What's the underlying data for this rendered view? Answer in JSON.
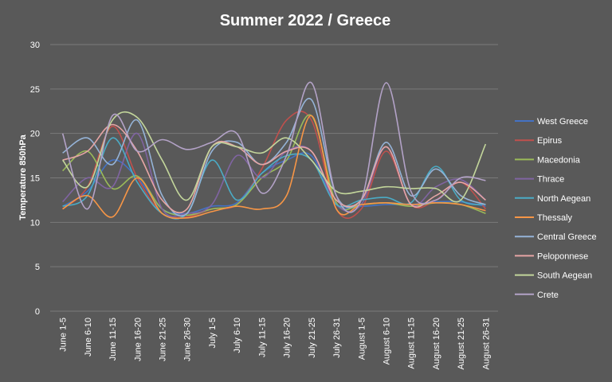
{
  "chart_data": {
    "type": "line",
    "title": "Summer 2022 / Greece",
    "xlabel": "",
    "ylabel": "Temperature 850hPa",
    "ylim": [
      0,
      30
    ],
    "yticks": [
      0,
      5,
      10,
      15,
      20,
      25,
      30
    ],
    "grid": true,
    "legend_position": "right",
    "smooth": true,
    "categories": [
      "June 1-5",
      "June 6-10",
      "June 11-15",
      "June 16-20",
      "June 21-25",
      "June 26-30",
      "July 1-5",
      "July 6-10",
      "July 11-15",
      "July 16-20",
      "July 21-25",
      "July 26-31",
      "August 1-5",
      "August 6-10",
      "August 11-15",
      "August 16-20",
      "August 21-25",
      "August 26-31"
    ],
    "series": [
      {
        "name": "West Greece",
        "color": "#4472c4",
        "values": [
          11.8,
          13.5,
          17.0,
          15.0,
          11.5,
          11.0,
          11.8,
          12.2,
          15.5,
          17.0,
          17.5,
          12.0,
          11.8,
          12.0,
          12.0,
          12.3,
          12.3,
          11.8
        ]
      },
      {
        "name": "Epirus",
        "color": "#c0504d",
        "values": [
          11.5,
          14.0,
          20.8,
          15.0,
          11.0,
          10.6,
          11.5,
          12.0,
          16.0,
          21.5,
          21.5,
          11.5,
          11.5,
          18.0,
          12.0,
          12.5,
          14.5,
          11.5
        ]
      },
      {
        "name": "Macedonia",
        "color": "#9bbb59",
        "values": [
          15.8,
          18.0,
          13.8,
          15.2,
          11.5,
          10.8,
          11.5,
          12.0,
          15.0,
          17.0,
          22.0,
          12.2,
          12.0,
          12.2,
          11.8,
          12.2,
          12.0,
          11.0
        ]
      },
      {
        "name": "Thrace",
        "color": "#8064a2",
        "values": [
          12.3,
          15.0,
          14.0,
          20.0,
          11.5,
          11.0,
          12.0,
          17.5,
          15.0,
          18.0,
          18.0,
          12.0,
          12.0,
          18.5,
          12.0,
          14.0,
          14.8,
          12.5
        ]
      },
      {
        "name": "North Aegean",
        "color": "#4bacc6",
        "values": [
          11.8,
          13.0,
          19.5,
          14.5,
          11.0,
          11.0,
          17.0,
          12.5,
          15.5,
          17.5,
          17.0,
          12.0,
          12.5,
          12.8,
          12.2,
          16.3,
          12.5,
          12.0
        ]
      },
      {
        "name": "Thessaly",
        "color": "#f79646",
        "values": [
          11.5,
          13.0,
          10.6,
          15.0,
          11.0,
          10.5,
          11.2,
          11.8,
          11.5,
          13.0,
          22.0,
          11.5,
          12.0,
          12.2,
          12.0,
          12.2,
          12.0,
          11.3
        ]
      },
      {
        "name": "Central Greece",
        "color": "#95b3d7",
        "values": [
          17.8,
          19.5,
          16.5,
          21.5,
          13.0,
          11.0,
          18.0,
          19.0,
          16.5,
          19.0,
          23.8,
          13.0,
          12.5,
          19.0,
          13.0,
          16.0,
          13.0,
          12.0
        ]
      },
      {
        "name": "Peloponnese",
        "color": "#e6a5a5",
        "values": [
          17.0,
          18.0,
          21.0,
          18.0,
          12.5,
          11.5,
          18.5,
          18.5,
          16.5,
          18.0,
          18.0,
          12.5,
          12.5,
          18.5,
          12.0,
          13.0,
          14.5,
          12.5
        ]
      },
      {
        "name": "South Aegean",
        "color": "#c3d69b",
        "values": [
          17.0,
          14.0,
          21.5,
          21.8,
          17.0,
          12.5,
          18.5,
          18.5,
          17.8,
          19.5,
          17.0,
          13.5,
          13.5,
          14.0,
          13.8,
          13.8,
          12.5,
          18.8
        ]
      },
      {
        "name": "Crete",
        "color": "#b3a2c7",
        "values": [
          20.0,
          11.5,
          22.0,
          18.0,
          19.3,
          18.2,
          19.0,
          20.0,
          13.3,
          17.5,
          25.7,
          13.0,
          12.5,
          25.7,
          13.5,
          12.5,
          15.0,
          14.7
        ]
      }
    ]
  }
}
